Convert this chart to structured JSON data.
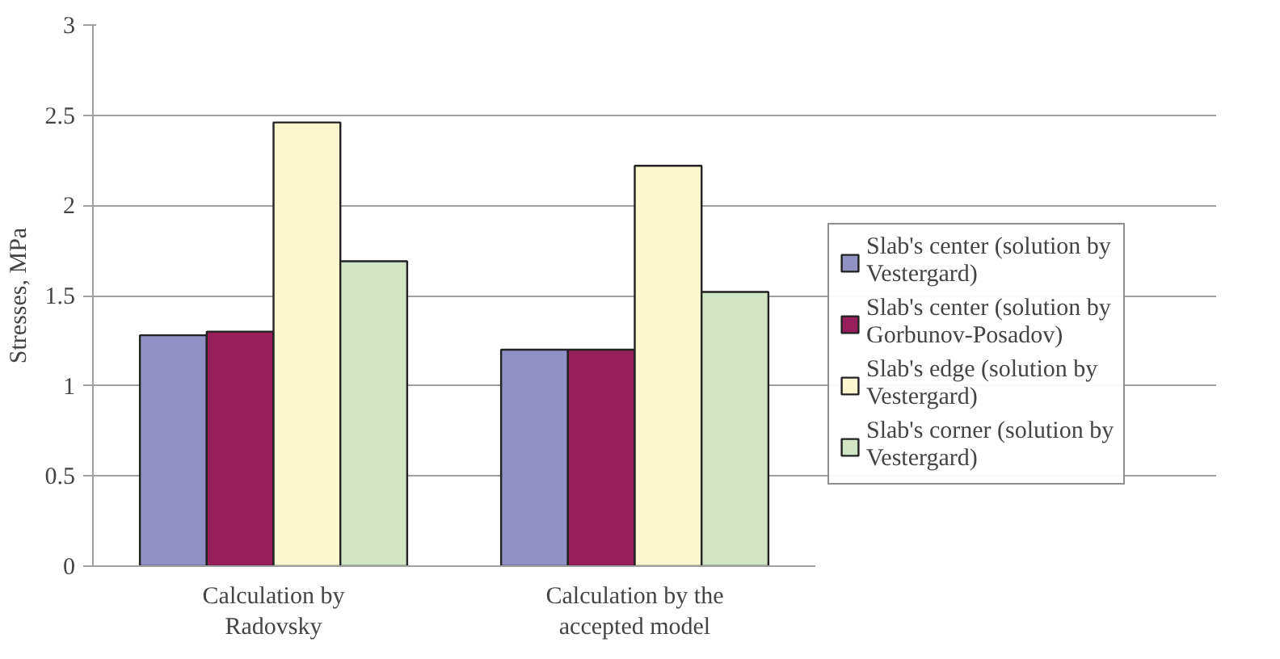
{
  "chart_data": {
    "type": "bar",
    "ylabel": "Stresses, MPa",
    "categories": [
      "Calculation by Radovsky",
      "Calculation by the accepted model"
    ],
    "series": [
      {
        "name": "Slab's center (solution by Vestergard)",
        "color": "#9191c6",
        "values": [
          1.28,
          1.2
        ]
      },
      {
        "name": "Slab's center (solution by Gorbunov-Posadov)",
        "color": "#961e5a",
        "values": [
          1.3,
          1.2
        ]
      },
      {
        "name": "Slab's edge (solution by Vestergard)",
        "color": "#fbf8cf",
        "values": [
          2.46,
          2.22
        ]
      },
      {
        "name": "Slab's corner (solution by Vestergard)",
        "color": "#d2e6c5",
        "values": [
          1.69,
          1.52
        ]
      }
    ],
    "ylim": [
      0,
      3
    ],
    "yticks": [
      0,
      0.5,
      1,
      1.5,
      2,
      2.5,
      3
    ],
    "grid": "y",
    "legend": "right"
  }
}
